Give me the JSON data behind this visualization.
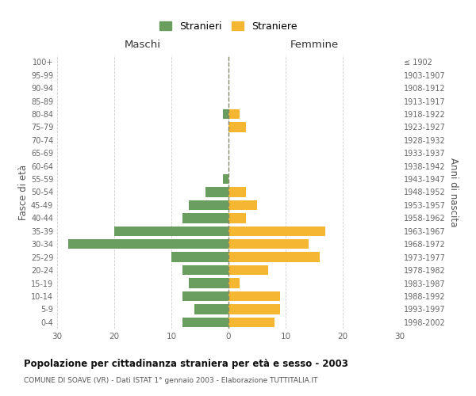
{
  "age_groups": [
    "0-4",
    "5-9",
    "10-14",
    "15-19",
    "20-24",
    "25-29",
    "30-34",
    "35-39",
    "40-44",
    "45-49",
    "50-54",
    "55-59",
    "60-64",
    "65-69",
    "70-74",
    "75-79",
    "80-84",
    "85-89",
    "90-94",
    "95-99",
    "100+"
  ],
  "birth_years": [
    "1998-2002",
    "1993-1997",
    "1988-1992",
    "1983-1987",
    "1978-1982",
    "1973-1977",
    "1968-1972",
    "1963-1967",
    "1958-1962",
    "1953-1957",
    "1948-1952",
    "1943-1947",
    "1938-1942",
    "1933-1937",
    "1928-1932",
    "1923-1927",
    "1918-1922",
    "1913-1917",
    "1908-1912",
    "1903-1907",
    "≤ 1902"
  ],
  "males": [
    8,
    6,
    8,
    7,
    8,
    10,
    28,
    20,
    8,
    7,
    4,
    1,
    0,
    0,
    0,
    0,
    1,
    0,
    0,
    0,
    0
  ],
  "females": [
    8,
    9,
    9,
    2,
    7,
    16,
    14,
    17,
    3,
    5,
    3,
    0,
    0,
    0,
    0,
    3,
    2,
    0,
    0,
    0,
    0
  ],
  "male_color": "#6a9e5e",
  "female_color": "#f5b731",
  "title": "Popolazione per cittadinanza straniera per età e sesso - 2003",
  "subtitle": "COMUNE DI SOAVE (VR) - Dati ISTAT 1° gennaio 2003 - Elaborazione TUTTITALIA.IT",
  "xlabel_left": "Maschi",
  "xlabel_right": "Femmine",
  "ylabel_left": "Fasce di età",
  "ylabel_right": "Anni di nascita",
  "legend_male": "Stranieri",
  "legend_female": "Straniere",
  "xlim": 30,
  "background_color": "#ffffff",
  "grid_color": "#cccccc",
  "bar_height": 0.75
}
